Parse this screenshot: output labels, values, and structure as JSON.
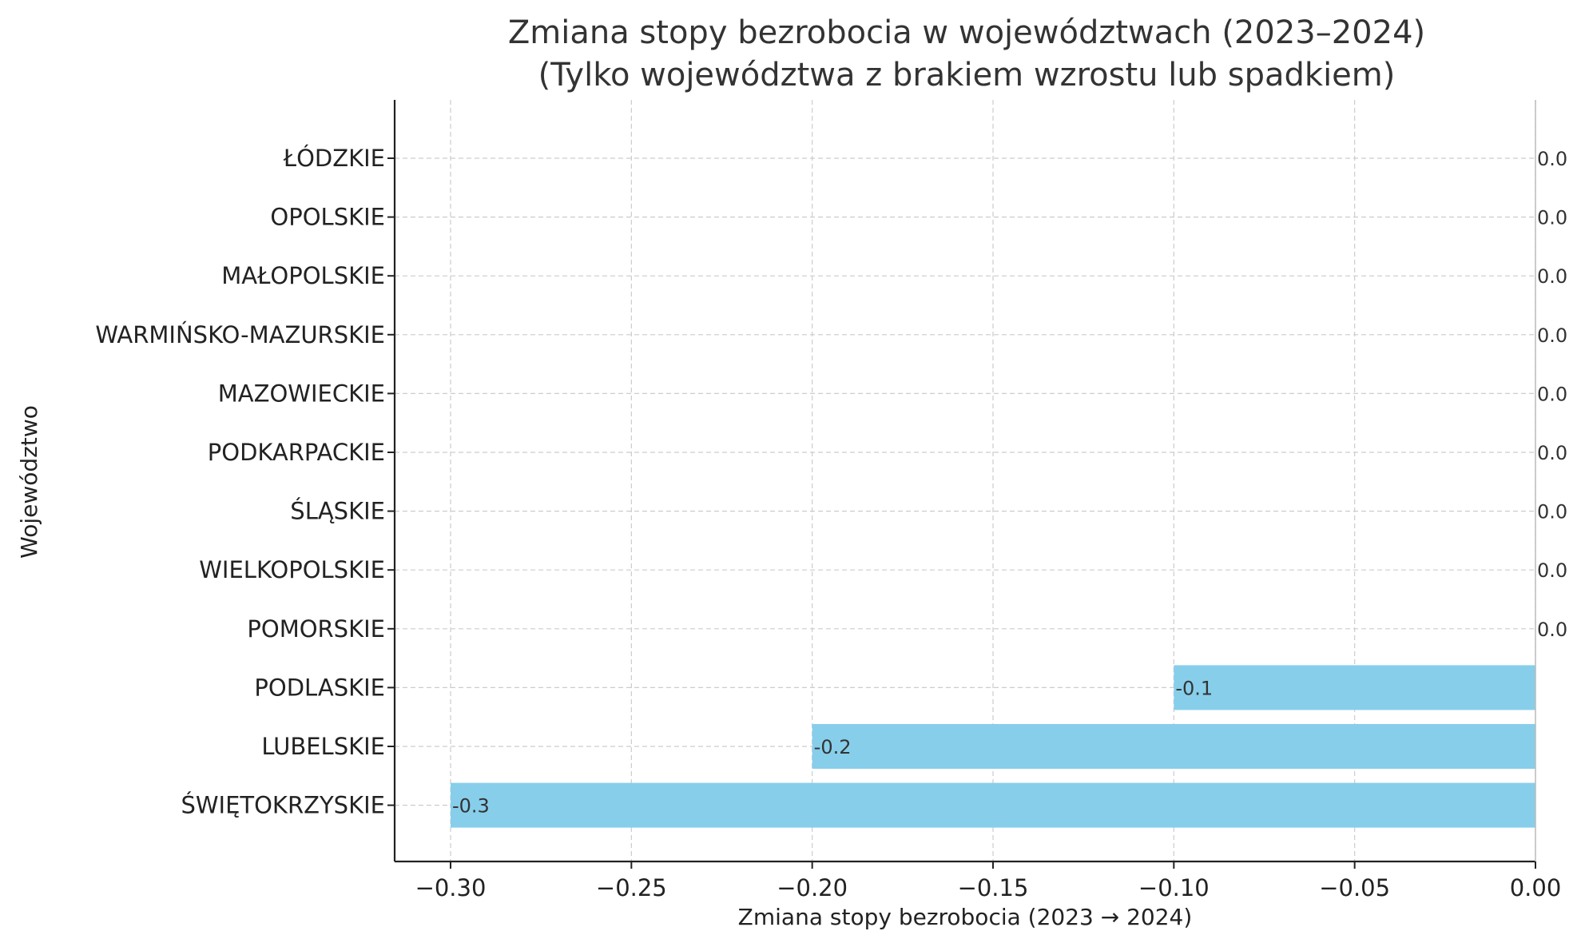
{
  "chart_data": {
    "type": "bar",
    "orientation": "horizontal",
    "title": "Zmiana stopy bezrobocia w województwach (2023–2024)",
    "subtitle": "(Tylko województwa z brakiem wzrostu lub spadkiem)",
    "xlabel": "Zmiana stopy bezrobocia (2023 → 2024)",
    "ylabel": "Województwo",
    "xlim": [
      -0.3,
      0.0
    ],
    "xticks": [
      "−0.30",
      "−0.25",
      "−0.20",
      "−0.15",
      "−0.10",
      "−0.05",
      "0.00"
    ],
    "grid": true,
    "bar_color": "#87ceeb",
    "categories": [
      "ŁÓDZKIE",
      "OPOLSKIE",
      "MAŁOPOLSKIE",
      "WARMIŃSKO-MAZURSKIE",
      "MAZOWIECKIE",
      "PODKARPACKIE",
      "ŚLĄSKIE",
      "WIELKOPOLSKIE",
      "POMORSKIE",
      "PODLASKIE",
      "LUBELSKIE",
      "ŚWIĘTOKRZYSKIE"
    ],
    "values": [
      0.0,
      0.0,
      0.0,
      0.0,
      0.0,
      0.0,
      0.0,
      0.0,
      0.0,
      -0.1,
      -0.2,
      -0.3
    ],
    "data_labels": [
      "0.0",
      "0.0",
      "0.0",
      "0.0",
      "0.0",
      "0.0",
      "0.0",
      "0.0",
      "0.0",
      "-0.1",
      "-0.2",
      "-0.3"
    ]
  }
}
